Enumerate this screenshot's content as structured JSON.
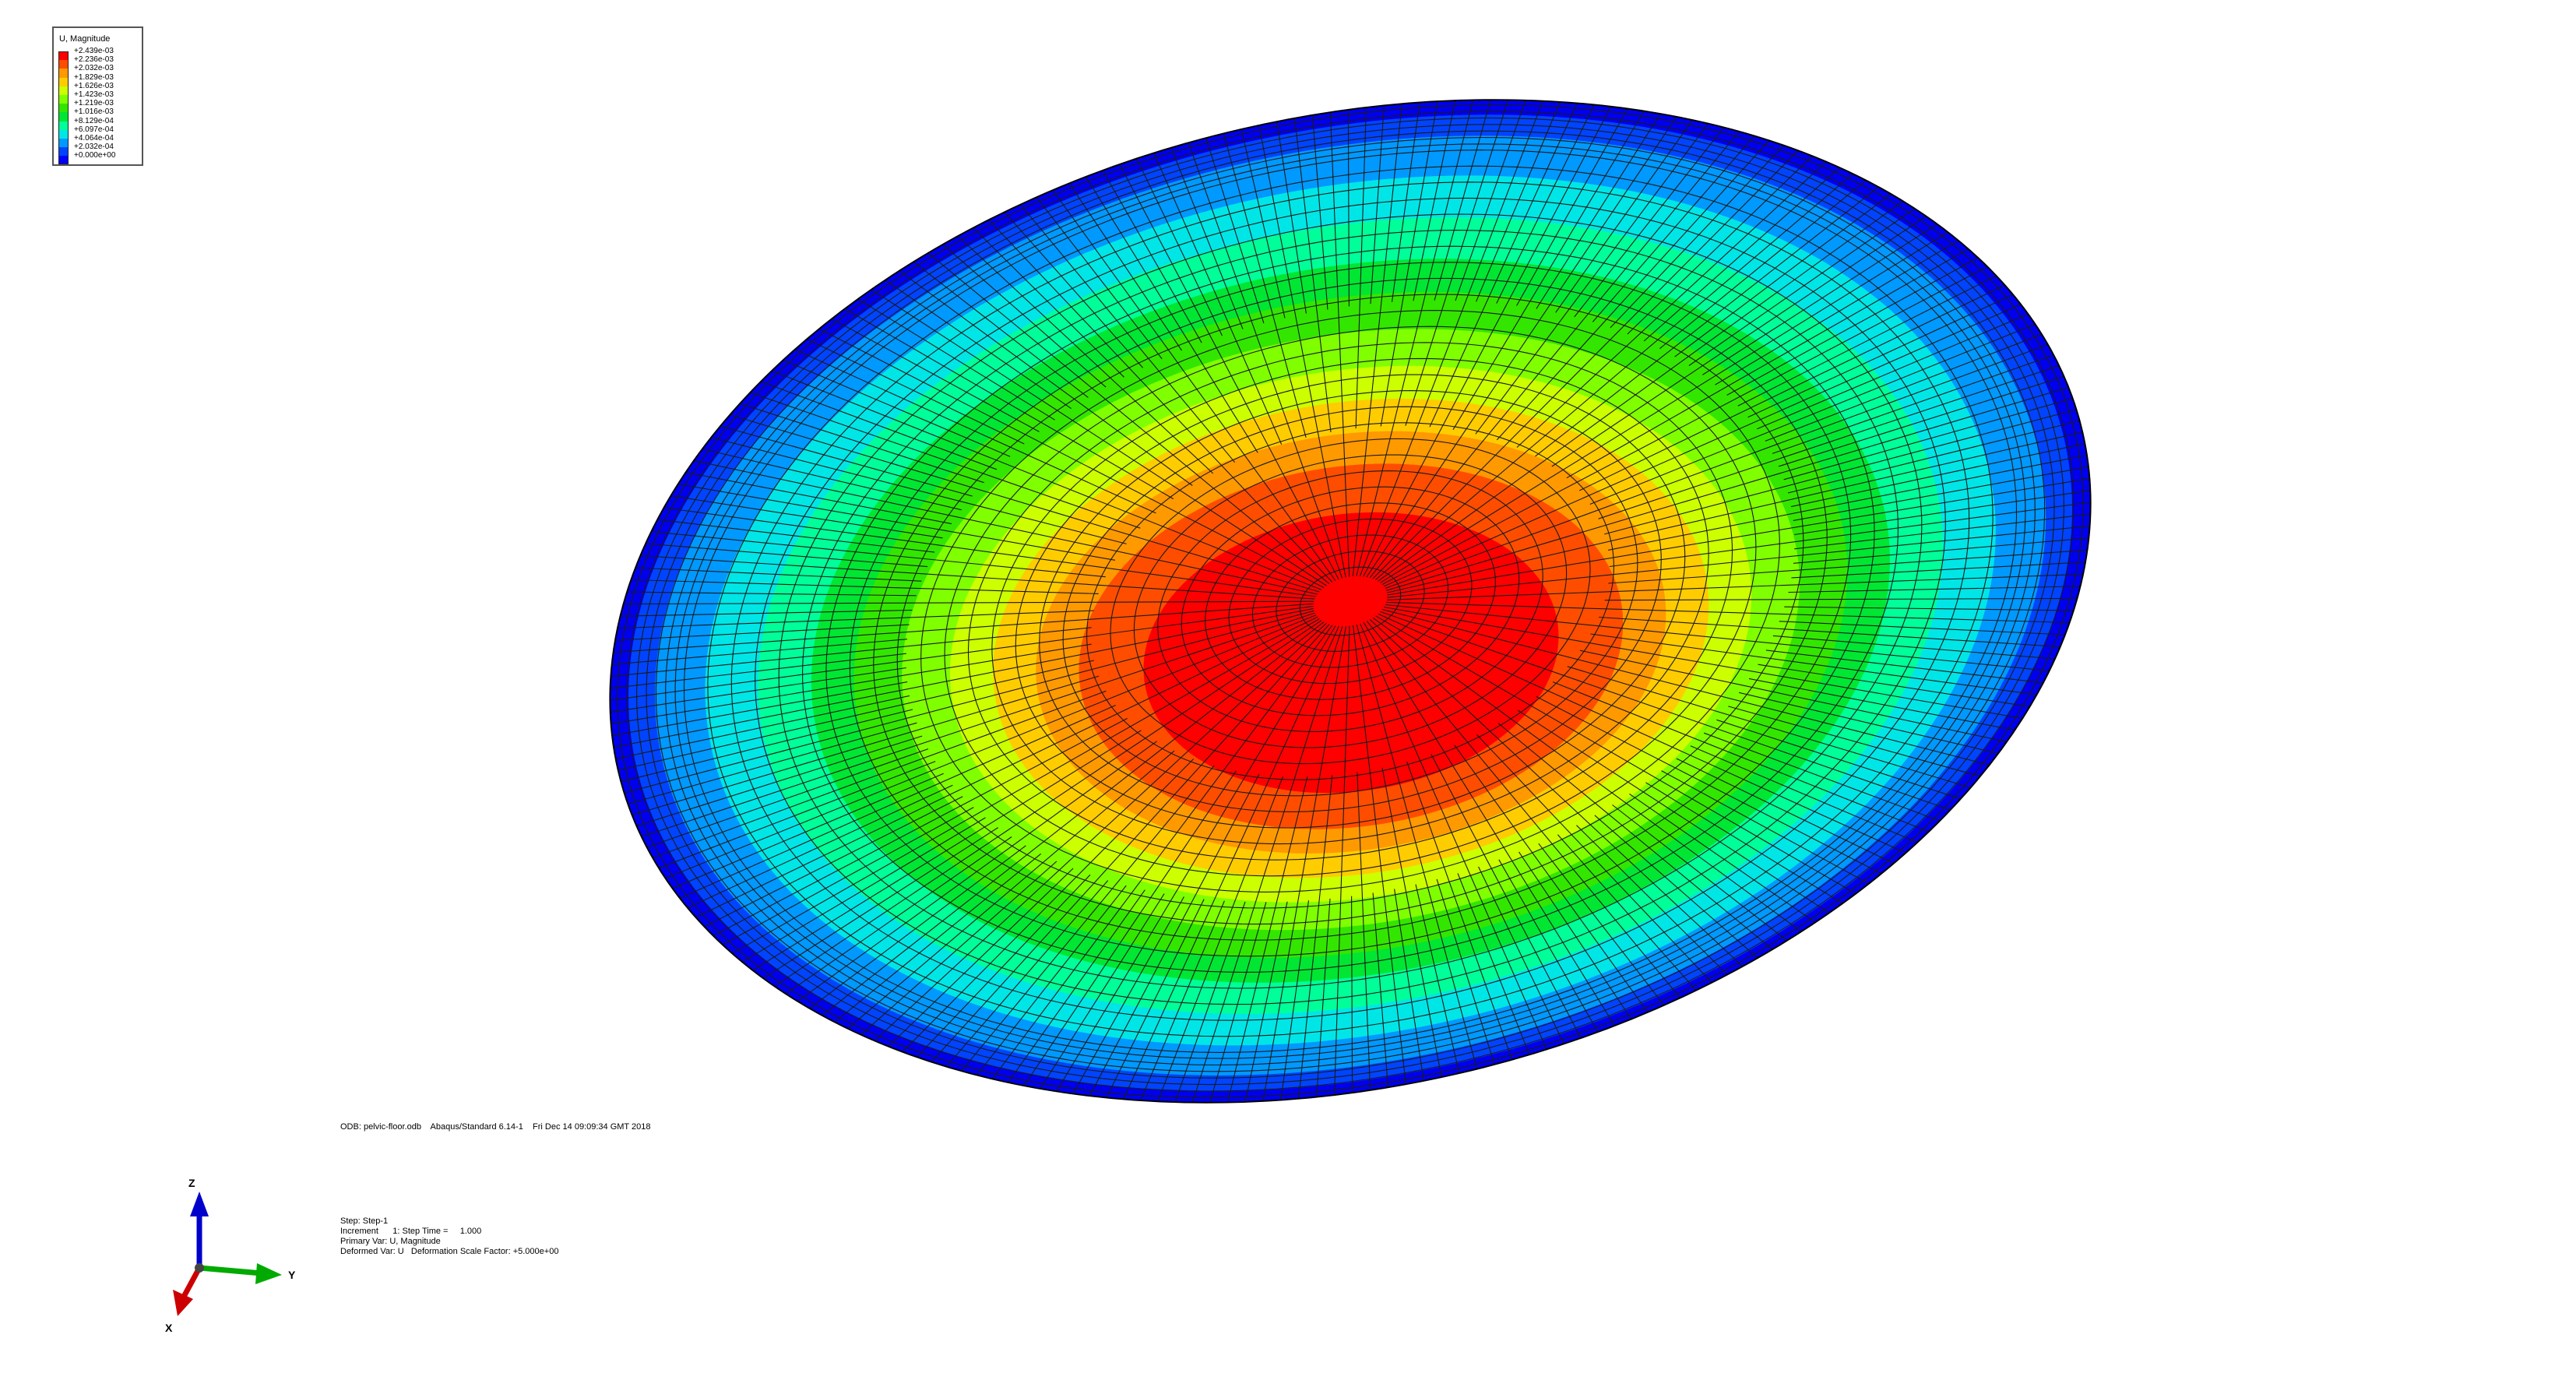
{
  "legend": {
    "title": "U, Magnitude",
    "entries": [
      {
        "label": "+2.439e-03",
        "color": "#ff0000"
      },
      {
        "label": "+2.236e-03",
        "color": "#ff4d00"
      },
      {
        "label": "+2.032e-03",
        "color": "#ff9900"
      },
      {
        "label": "+1.829e-03",
        "color": "#ffcc00"
      },
      {
        "label": "+1.626e-03",
        "color": "#ccff00"
      },
      {
        "label": "+1.423e-03",
        "color": "#80ff00"
      },
      {
        "label": "+1.219e-03",
        "color": "#33e600"
      },
      {
        "label": "+1.016e-03",
        "color": "#00e633"
      },
      {
        "label": "+8.129e-04",
        "color": "#00ff99"
      },
      {
        "label": "+6.097e-04",
        "color": "#00e6e6"
      },
      {
        "label": "+4.064e-04",
        "color": "#0099ff"
      },
      {
        "label": "+2.032e-04",
        "color": "#0044ff"
      },
      {
        "label": "+0.000e+00",
        "color": "#0000ff"
      }
    ]
  },
  "contour_bands": [
    "#0000ee",
    "#0044ff",
    "#0099ff",
    "#00e6e6",
    "#00ff99",
    "#00e633",
    "#33e600",
    "#80ff00",
    "#ccff00",
    "#ffcc00",
    "#ff9900",
    "#ff4d00",
    "#ff0000"
  ],
  "odb_line": "ODB: pelvic-floor.odb    Abaqus/Standard 6.14-1    Fri Dec 14 09:09:34 GMT 2018",
  "step_info": {
    "step": "Step: Step-1",
    "increment": "Increment      1: Step Time =     1.000",
    "primary_var": "Primary Var: U, Magnitude",
    "deformed_var": "Deformed Var: U   Deformation Scale Factor: +5.000e+00"
  },
  "triad": {
    "z_label": "Z",
    "y_label": "Y",
    "x_label": "X",
    "z_color": "#0000cc",
    "y_color": "#00aa00",
    "x_color": "#cc0000"
  }
}
